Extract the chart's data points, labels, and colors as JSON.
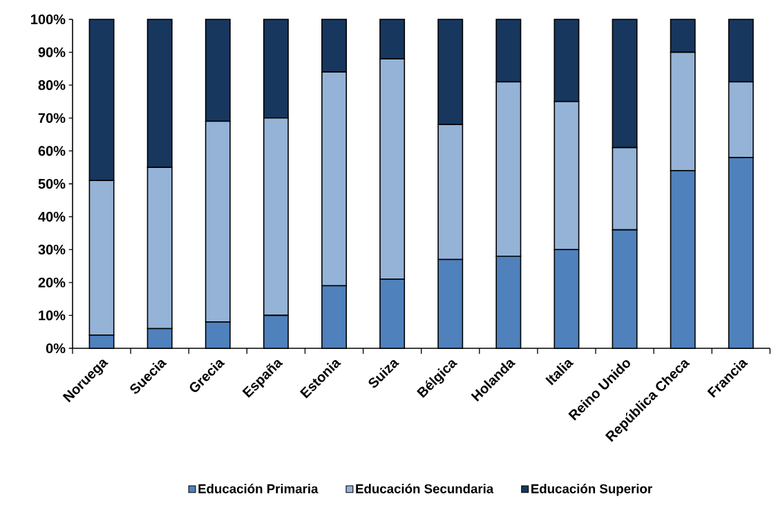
{
  "chart_data": {
    "type": "bar",
    "stacked": true,
    "categories": [
      "Noruega",
      "Suecia",
      "Grecia",
      "España",
      "Estonia",
      "Suiza",
      "Bélgica",
      "Holanda",
      "Italia",
      "Reino Unido",
      "República Checa",
      "Francia"
    ],
    "series": [
      {
        "name": "Educación Primaria",
        "color": "#4f81bd",
        "values": [
          4,
          6,
          8,
          10,
          19,
          21,
          27,
          28,
          30,
          36,
          54,
          58
        ]
      },
      {
        "name": "Educación Secundaria",
        "color": "#95b3d7",
        "values": [
          47,
          49,
          61,
          60,
          65,
          67,
          41,
          53,
          45,
          25,
          36,
          23
        ]
      },
      {
        "name": "Educación Superior",
        "color": "#17375e",
        "values": [
          49,
          45,
          31,
          30,
          16,
          12,
          32,
          19,
          25,
          39,
          10,
          19
        ]
      }
    ],
    "ylim": [
      0,
      100
    ],
    "yticks": [
      {
        "value": 0,
        "label": "0%"
      },
      {
        "value": 10,
        "label": "10%"
      },
      {
        "value": 20,
        "label": "20%"
      },
      {
        "value": 30,
        "label": "30%"
      },
      {
        "value": 40,
        "label": "40%"
      },
      {
        "value": 50,
        "label": "50%"
      },
      {
        "value": 60,
        "label": "60%"
      },
      {
        "value": 70,
        "label": "70%"
      },
      {
        "value": 80,
        "label": "80%"
      },
      {
        "value": 90,
        "label": "90%"
      },
      {
        "value": 100,
        "label": "100%"
      }
    ],
    "legend": "bottom",
    "grid": false
  }
}
